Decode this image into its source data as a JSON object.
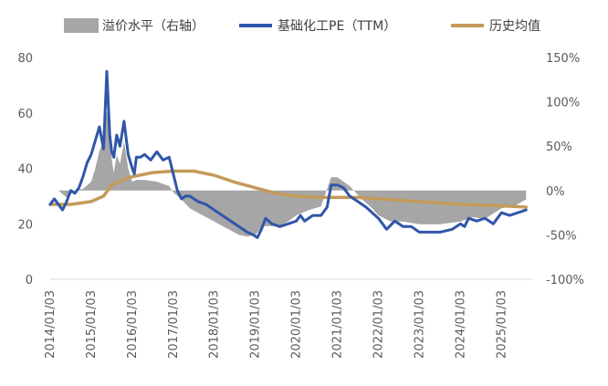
{
  "chart_data": {
    "type": "line",
    "legend": [
      {
        "name": "溢价水平（右轴）",
        "color": "#a6a6a6",
        "kind": "area"
      },
      {
        "name": "基础化工PE（TTM）",
        "color": "#2f56a8",
        "kind": "line"
      },
      {
        "name": "历史均值",
        "color": "#c49a5a",
        "kind": "line"
      }
    ],
    "legend_position": "top",
    "x_ticks": [
      "2014/01/03",
      "2015/01/03",
      "2016/01/03",
      "2017/01/03",
      "2018/01/03",
      "2019/01/03",
      "2020/01/03",
      "2021/01/03",
      "2022/01/03",
      "2023/01/03",
      "2024/01/03",
      "2025/01/03"
    ],
    "y_left": {
      "min": 0,
      "max": 80,
      "ticks": [
        "0",
        "20",
        "40",
        "60",
        "80"
      ]
    },
    "y_right": {
      "min": -100,
      "max": 150,
      "ticks": [
        "-100%",
        "-50%",
        "0%",
        "50%",
        "100%",
        "150%"
      ]
    },
    "grid": false,
    "series": [
      {
        "name": "基础化工PE（TTM）",
        "axis": "left",
        "color": "#2f56a8",
        "x": [
          2014.0,
          2014.1,
          2014.2,
          2014.3,
          2014.4,
          2014.5,
          2014.6,
          2014.7,
          2014.8,
          2014.9,
          2015.0,
          2015.1,
          2015.2,
          2015.3,
          2015.38,
          2015.45,
          2015.5,
          2015.55,
          2015.62,
          2015.7,
          2015.8,
          2015.9,
          2016.0,
          2016.05,
          2016.1,
          2016.2,
          2016.3,
          2016.45,
          2016.6,
          2016.75,
          2016.9,
          2017.0,
          2017.1,
          2017.2,
          2017.3,
          2017.4,
          2017.6,
          2017.8,
          2018.0,
          2018.2,
          2018.4,
          2018.6,
          2018.8,
          2018.95,
          2019.05,
          2019.15,
          2019.25,
          2019.4,
          2019.6,
          2019.8,
          2020.0,
          2020.1,
          2020.2,
          2020.4,
          2020.6,
          2020.75,
          2020.85,
          2021.0,
          2021.15,
          2021.3,
          2021.5,
          2021.7,
          2021.85,
          2022.0,
          2022.2,
          2022.4,
          2022.6,
          2022.8,
          2023.0,
          2023.2,
          2023.5,
          2023.8,
          2024.0,
          2024.1,
          2024.2,
          2024.4,
          2024.6,
          2024.8,
          2025.0,
          2025.2,
          2025.4,
          2025.6
        ],
        "values": [
          27,
          29,
          27,
          25,
          28,
          32,
          31,
          33,
          37,
          42,
          45,
          50,
          55,
          47,
          75,
          52,
          46,
          44,
          52,
          48,
          57,
          45,
          40,
          38,
          44,
          44,
          45,
          43,
          46,
          43,
          44,
          38,
          32,
          29,
          30,
          30,
          28,
          27,
          25,
          23,
          21,
          19,
          17,
          16,
          15,
          18,
          22,
          20,
          19,
          20,
          21,
          23,
          21,
          23,
          23,
          26,
          34,
          34,
          33,
          30,
          28,
          26,
          24,
          22,
          18,
          21,
          19,
          19,
          17,
          17,
          17,
          18,
          20,
          19,
          22,
          21,
          22,
          20,
          24,
          23,
          24,
          25
        ]
      },
      {
        "name": "历史均值",
        "axis": "left",
        "color": "#c49a5a",
        "x": [
          2014.0,
          2014.5,
          2015.0,
          2015.3,
          2015.5,
          2015.8,
          2016.0,
          2016.5,
          2017.0,
          2017.5,
          2018.0,
          2018.5,
          2019.0,
          2019.5,
          2020.0,
          2020.5,
          2021.0,
          2021.5,
          2022.0,
          2023.0,
          2024.0,
          2025.0,
          2025.6
        ],
        "values": [
          27,
          27,
          28,
          30,
          34,
          36,
          37,
          38.5,
          39,
          39,
          37.5,
          35,
          33,
          31,
          30,
          29.5,
          29.5,
          29.5,
          29,
          28,
          27,
          26.5,
          26
        ]
      },
      {
        "name": "溢价水平（右轴）",
        "axis": "right",
        "color": "#a6a6a6",
        "x": [
          2014.0,
          2014.2,
          2014.4,
          2014.6,
          2014.8,
          2015.0,
          2015.1,
          2015.2,
          2015.3,
          2015.38,
          2015.45,
          2015.5,
          2015.55,
          2015.62,
          2015.7,
          2015.8,
          2015.9,
          2016.0,
          2016.1,
          2016.3,
          2016.6,
          2016.9,
          2017.0,
          2017.2,
          2017.4,
          2017.6,
          2017.8,
          2018.0,
          2018.2,
          2018.4,
          2018.6,
          2018.8,
          2019.0,
          2019.2,
          2019.4,
          2019.6,
          2019.8,
          2020.0,
          2020.3,
          2020.6,
          2020.85,
          2021.0,
          2021.3,
          2021.6,
          2021.85,
          2022.0,
          2022.3,
          2022.6,
          2023.0,
          2023.5,
          2024.0,
          2024.3,
          2024.6,
          2025.0,
          2025.3,
          2025.6
        ],
        "values": [
          0,
          0,
          -8,
          0,
          2,
          10,
          25,
          45,
          55,
          90,
          60,
          35,
          20,
          40,
          30,
          55,
          25,
          10,
          12,
          12,
          10,
          5,
          -2,
          -10,
          -20,
          -25,
          -30,
          -35,
          -40,
          -45,
          -50,
          -52,
          -50,
          -40,
          -40,
          -40,
          -35,
          -28,
          -22,
          -18,
          15,
          15,
          5,
          -10,
          -20,
          -28,
          -35,
          -35,
          -38,
          -38,
          -35,
          -30,
          -32,
          -20,
          -18,
          -10
        ]
      }
    ]
  }
}
